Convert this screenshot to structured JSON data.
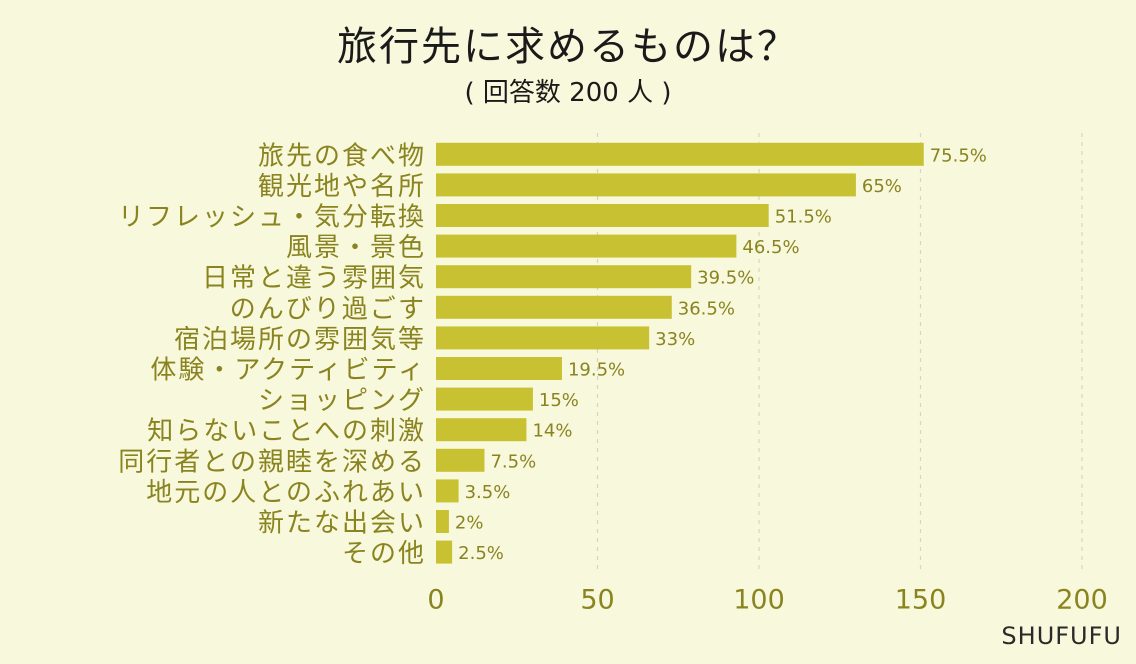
{
  "chart_data": {
    "type": "bar",
    "orientation": "horizontal",
    "title": "旅行先に求めるものは？",
    "subtitle": "( 回答数 200 人 )",
    "categories": [
      "旅先の食べ物",
      "観光地や名所",
      "リフレッシュ・気分転換",
      "風景・景色",
      "日常と違う雰囲気",
      "のんびり過ごす",
      "宿泊場所の雰囲気等",
      "体験・アクティビティ",
      "ショッピング",
      "知らないことへの刺激",
      "同行者との親睦を深める",
      "地元の人とのふれあい",
      "新たな出会い",
      "その他"
    ],
    "values": [
      151,
      130,
      103,
      93,
      79,
      73,
      66,
      39,
      30,
      28,
      15,
      7,
      4,
      5
    ],
    "data_labels": [
      "75.5%",
      "65%",
      "51.5%",
      "46.5%",
      "39.5%",
      "36.5%",
      "33%",
      "19.5%",
      "15%",
      "14%",
      "7.5%",
      "3.5%",
      "2%",
      "2.5%"
    ],
    "x_ticks": [
      "0",
      "50",
      "100",
      "150",
      "200"
    ],
    "xlim": [
      0,
      200
    ],
    "grid": "vertical dashed",
    "colors": {
      "bar": "#c8c232",
      "label": "#8a8420",
      "grid": "#d6d6c0",
      "background": "#f8f8dc"
    }
  },
  "brand": "SHUFUFU"
}
